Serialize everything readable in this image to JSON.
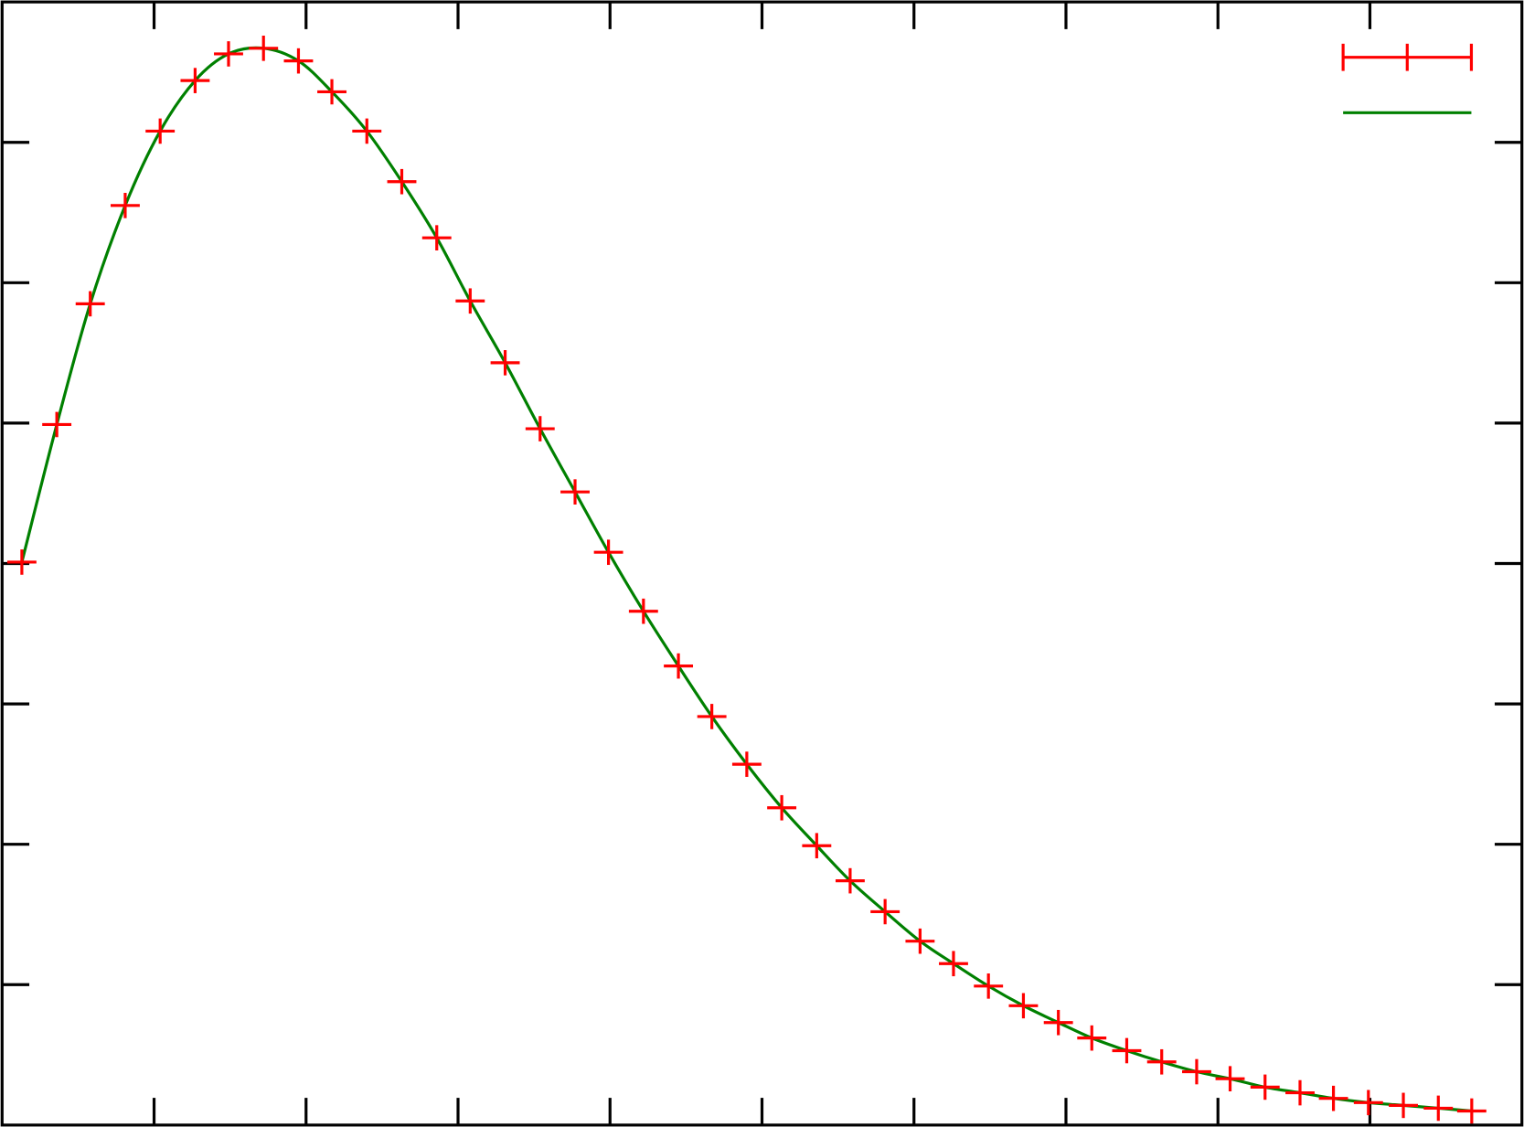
{
  "chart_data": {
    "type": "scatter",
    "title": "",
    "xlabel": "",
    "ylabel": "",
    "xlim": [
      0,
      10
    ],
    "ylim": [
      0,
      8
    ],
    "xticks": [
      1,
      2,
      3,
      4,
      5,
      6,
      7,
      8,
      9
    ],
    "yticks": [
      1,
      2,
      3,
      4,
      5,
      6,
      7
    ],
    "grid": false,
    "legend_placement": "top-right",
    "series": [
      {
        "style": "points-with-errorbars",
        "color": "#ff0000",
        "x": [
          0.13,
          0.36,
          0.58,
          0.81,
          1.04,
          1.27,
          1.49,
          1.72,
          1.95,
          2.17,
          2.4,
          2.63,
          2.86,
          3.08,
          3.31,
          3.54,
          3.77,
          3.99,
          4.22,
          4.45,
          4.67,
          4.9,
          5.13,
          5.36,
          5.58,
          5.81,
          6.04,
          6.26,
          6.49,
          6.72,
          6.95,
          7.17,
          7.4,
          7.63,
          7.86,
          8.08,
          8.31,
          8.54,
          8.76,
          8.99,
          9.22,
          9.45,
          9.67
        ],
        "y": [
          4.01,
          4.99,
          5.85,
          6.55,
          7.08,
          7.44,
          7.63,
          7.67,
          7.58,
          7.36,
          7.08,
          6.72,
          6.32,
          5.87,
          5.43,
          4.96,
          4.51,
          4.08,
          3.66,
          3.27,
          2.91,
          2.57,
          2.26,
          1.99,
          1.74,
          1.52,
          1.31,
          1.15,
          0.99,
          0.85,
          0.73,
          0.62,
          0.53,
          0.45,
          0.38,
          0.33,
          0.27,
          0.23,
          0.19,
          0.16,
          0.14,
          0.12,
          0.1
        ],
        "yerr": 0.09
      },
      {
        "style": "line",
        "color": "#008000"
      }
    ]
  }
}
